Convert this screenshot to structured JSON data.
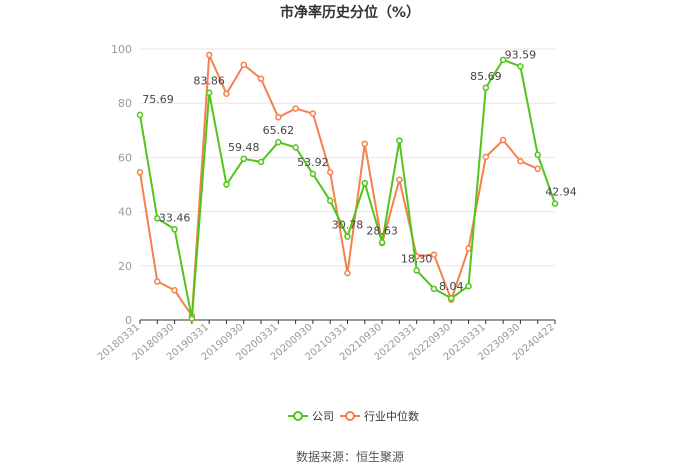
{
  "chart_data": {
    "type": "line",
    "title": "市净率历史分位（%）",
    "source": "数据来源：恒生聚源",
    "xlabel": "",
    "ylabel": "",
    "ylim": [
      0,
      100
    ],
    "yticks": [
      0,
      20,
      40,
      60,
      80,
      100
    ],
    "grid": true,
    "legend_position": "bottom",
    "x": [
      "20180331",
      "20180630",
      "20180930",
      "20181231",
      "20190331",
      "20190630",
      "20190930",
      "20191231",
      "20200331",
      "20200630",
      "20200930",
      "20201231",
      "20210331",
      "20210630",
      "20210930",
      "20211231",
      "20220331",
      "20220630",
      "20220930",
      "20221231",
      "20230331",
      "20230630",
      "20230930",
      "20231231",
      "20240422"
    ],
    "x_tick_labels": [
      "20180331",
      "20180930",
      "20190331",
      "20190930",
      "20200331",
      "20200930",
      "20210331",
      "20210930",
      "20220331",
      "20220930",
      "20230331",
      "20230930",
      "20240422"
    ],
    "series": [
      {
        "name": "公司",
        "color": "#52c41a",
        "values": [
          75.69,
          37.5,
          33.46,
          0.5,
          83.86,
          50.0,
          59.48,
          58.3,
          65.62,
          63.7,
          53.92,
          44.0,
          30.78,
          50.5,
          28.63,
          66.2,
          18.3,
          11.5,
          8.04,
          12.5,
          85.69,
          96.0,
          93.59,
          61.0,
          42.94
        ],
        "labels": {
          "0": "75.69",
          "2": "33.46",
          "4": "83.86",
          "6": "59.48",
          "8": "65.62",
          "10": "53.92",
          "12": "30.78",
          "14": "28.63",
          "16": "18.30",
          "18": "8.04",
          "20": "85.69",
          "22": "93.59",
          "24": "42.94"
        }
      },
      {
        "name": "行业中位数",
        "color": "#f5804d",
        "values": [
          54.5,
          14.2,
          11.0,
          1.5,
          97.8,
          83.5,
          94.2,
          89.0,
          74.8,
          78.0,
          76.2,
          54.5,
          17.3,
          65.0,
          28.4,
          51.8,
          23.5,
          24.1,
          7.5,
          26.4,
          60.2,
          66.4,
          58.6,
          55.8,
          null
        ]
      }
    ]
  }
}
